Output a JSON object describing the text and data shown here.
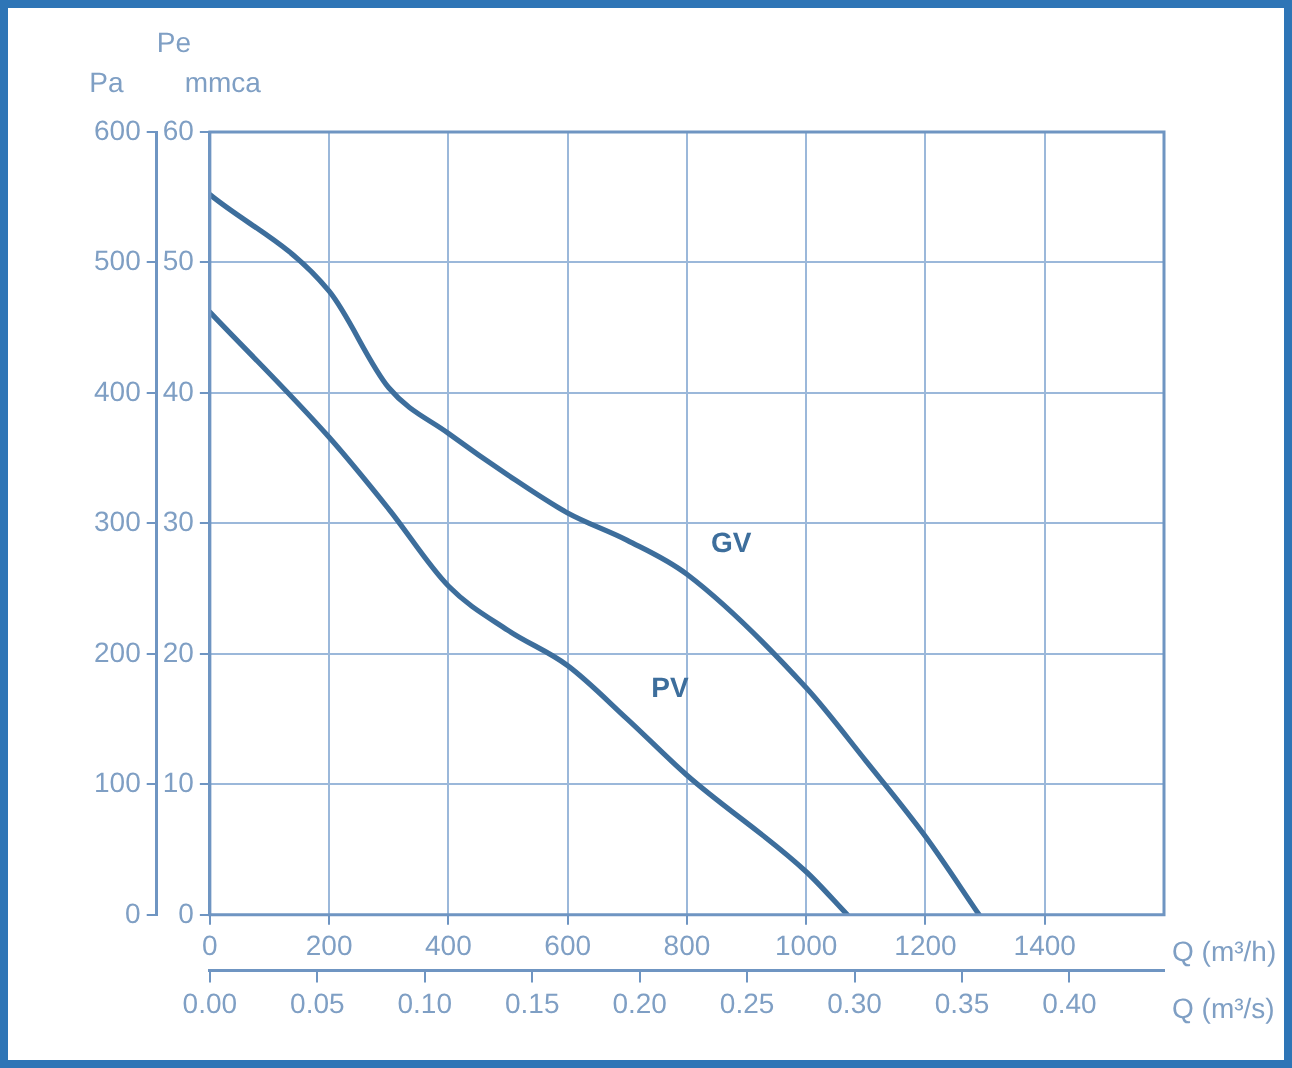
{
  "chart_data": {
    "type": "line",
    "xlabel": "Q (m³/h)",
    "x2label": "Q (m³/s)",
    "ylabel": "Pa",
    "y2label": "Pe mmca",
    "xlim": [
      0,
      1600
    ],
    "xticks": [
      0,
      200,
      400,
      600,
      800,
      1000,
      1200,
      1400
    ],
    "x2lim": [
      0,
      0.444
    ],
    "x2ticks": [
      {
        "value": 0,
        "label": "0.00"
      },
      0.05,
      {
        "value": 0.1,
        "label": "0.10"
      },
      0.15,
      {
        "value": 0.2,
        "label": "0.20"
      },
      0.25,
      {
        "value": 0.3,
        "label": "0.30"
      },
      0.35,
      {
        "value": 0.4,
        "label": "0.40"
      }
    ],
    "ylim": [
      0,
      600
    ],
    "yticks": [
      0,
      100,
      200,
      300,
      400,
      500,
      600
    ],
    "y2lim": [
      0,
      60
    ],
    "y2ticks": [
      0,
      10,
      20,
      30,
      40,
      50,
      60
    ],
    "grid": true,
    "legend": false,
    "marker": "none",
    "line_style": "solid",
    "series": [
      {
        "name": "GV",
        "color": "#3d6e9c",
        "x": [
          0,
          200,
          300,
          400,
          500,
          600,
          700,
          800,
          1000,
          1100,
          1200,
          1290
        ],
        "values": [
          552,
          478,
          404,
          369,
          337,
          308,
          287,
          261,
          174,
          118,
          60,
          0
        ]
      },
      {
        "name": "PV",
        "color": "#3d6e9c",
        "x": [
          0,
          200,
          300,
          400,
          500,
          600,
          700,
          800,
          1000,
          1069
        ],
        "values": [
          462,
          366,
          311,
          252,
          218,
          191,
          150,
          107,
          33,
          0
        ]
      }
    ]
  }
}
